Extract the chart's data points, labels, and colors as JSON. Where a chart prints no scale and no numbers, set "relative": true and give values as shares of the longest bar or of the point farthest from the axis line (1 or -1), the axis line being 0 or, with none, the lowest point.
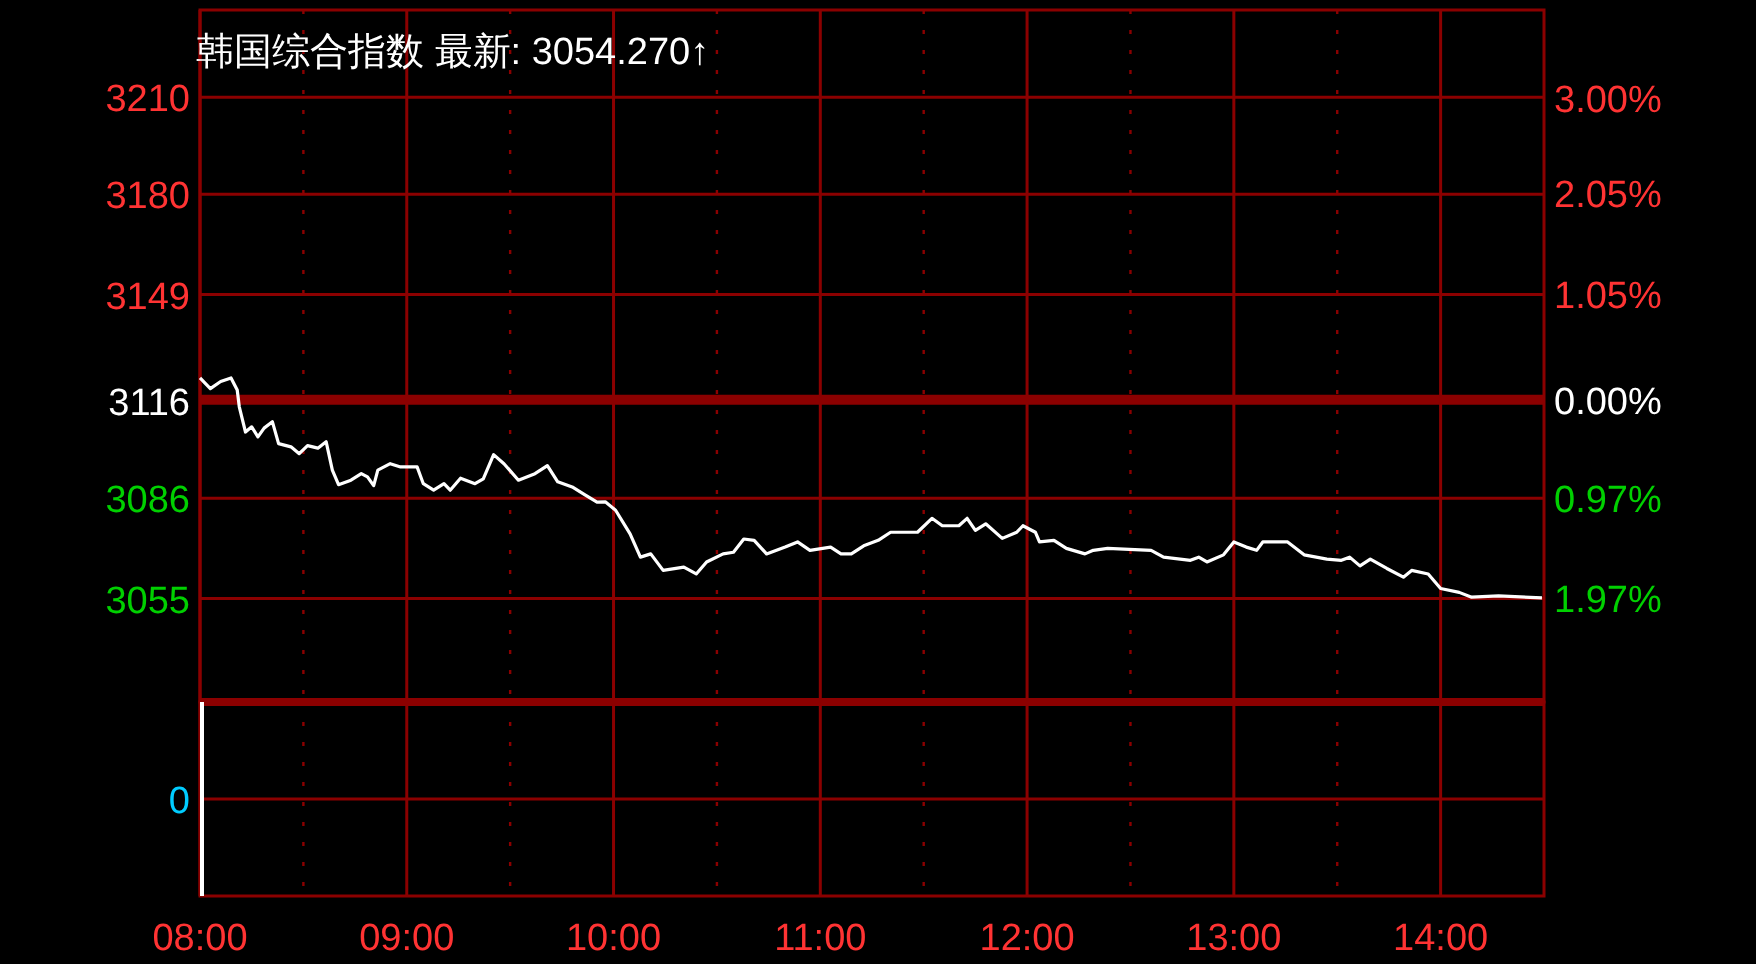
{
  "chart_data": [
    {
      "type": "line",
      "title": "韩国综合指数 最新: 3054.270↑",
      "x": [
        8.0,
        8.05,
        8.1,
        8.15,
        8.18,
        8.19,
        8.22,
        8.25,
        8.28,
        8.31,
        8.35,
        8.38,
        8.44,
        8.48,
        8.52,
        8.57,
        8.61,
        8.64,
        8.67,
        8.73,
        8.78,
        8.81,
        8.84,
        8.86,
        8.92,
        8.97,
        9.05,
        9.08,
        9.13,
        9.18,
        9.21,
        9.26,
        9.33,
        9.37,
        9.42,
        9.47,
        9.54,
        9.62,
        9.68,
        9.73,
        9.8,
        9.86,
        9.92,
        9.96,
        10.01,
        10.08,
        10.13,
        10.18,
        10.24,
        10.34,
        10.4,
        10.45,
        10.53,
        10.58,
        10.63,
        10.68,
        10.74,
        10.83,
        10.89,
        10.95,
        11.05,
        11.1,
        11.15,
        11.21,
        11.28,
        11.34,
        11.47,
        11.54,
        11.59,
        11.67,
        11.71,
        11.75,
        11.8,
        11.88,
        11.95,
        11.98,
        12.04,
        12.06,
        12.13,
        12.19,
        12.28,
        12.32,
        12.39,
        12.6,
        12.66,
        12.79,
        12.83,
        12.87,
        12.95,
        13.0,
        13.06,
        13.11,
        13.14,
        13.26,
        13.34,
        13.45,
        13.52,
        13.56,
        13.61,
        13.66,
        13.74,
        13.82,
        13.86,
        13.94,
        14.0,
        14.09,
        14.15,
        14.28,
        14.49
      ],
      "series": [
        {
          "color": "#ffffff",
          "values": [
            3123.2,
            3119.9,
            3122.1,
            3123.2,
            3119.5,
            3114.3,
            3106.5,
            3108.1,
            3105.0,
            3107.7,
            3109.7,
            3102.9,
            3101.9,
            3099.8,
            3102.3,
            3101.5,
            3103.5,
            3094.7,
            3090.2,
            3091.6,
            3093.6,
            3092.6,
            3089.9,
            3094.7,
            3096.7,
            3095.7,
            3095.7,
            3090.5,
            3088.5,
            3090.5,
            3088.5,
            3092.2,
            3090.5,
            3092.0,
            3099.5,
            3096.7,
            3091.6,
            3093.6,
            3096.1,
            3091.1,
            3089.5,
            3087.1,
            3084.8,
            3084.9,
            3082.3,
            3075.0,
            3067.8,
            3068.8,
            3063.7,
            3064.7,
            3062.6,
            3066.3,
            3068.8,
            3069.3,
            3073.4,
            3073.0,
            3068.8,
            3070.9,
            3072.5,
            3069.9,
            3070.9,
            3068.8,
            3068.8,
            3071.3,
            3073.0,
            3075.5,
            3075.5,
            3079.8,
            3077.5,
            3077.5,
            3079.8,
            3076.1,
            3078.1,
            3073.6,
            3075.5,
            3077.5,
            3075.5,
            3072.5,
            3073.0,
            3070.5,
            3068.8,
            3069.9,
            3070.5,
            3069.9,
            3067.8,
            3066.8,
            3067.8,
            3066.3,
            3068.5,
            3072.5,
            3070.9,
            3069.9,
            3072.5,
            3072.5,
            3068.5,
            3067.2,
            3066.8,
            3067.8,
            3065.1,
            3067.2,
            3064.3,
            3061.6,
            3063.7,
            3062.6,
            3058.1,
            3056.9,
            3055.4,
            3055.8,
            3055.2
          ]
        }
      ],
      "xlim": [
        8,
        14.5
      ],
      "xticks": [
        {
          "value": 8,
          "label": null
        },
        {
          "value": 8.5,
          "label": null
        },
        {
          "value": 9,
          "label": null
        },
        {
          "value": 9.5,
          "label": null
        },
        {
          "value": 10,
          "label": null
        },
        {
          "value": 10.5,
          "label": null
        },
        {
          "value": 11,
          "label": null
        },
        {
          "value": 11.5,
          "label": null
        },
        {
          "value": 12,
          "label": null
        },
        {
          "value": 12.5,
          "label": null
        },
        {
          "value": 13,
          "label": null
        },
        {
          "value": 13.5,
          "label": null
        },
        {
          "value": 14,
          "label": null
        }
      ],
      "ylim": [
        3023,
        3237
      ],
      "yticks": [
        3210,
        3180,
        3149,
        3116,
        3086,
        3055
      ],
      "y2lim": [
        -3.0,
        3.87
      ],
      "y2ticks": [
        {
          "value": 3,
          "label": "3.00%"
        },
        {
          "value": 2.05,
          "label": "2.05%"
        },
        {
          "value": 1.05,
          "label": "1.05%"
        },
        {
          "value": 0,
          "label": "0.00%"
        },
        {
          "value": -0.97,
          "label": "0.97%"
        },
        {
          "value": -1.97,
          "label": "1.97%"
        }
      ],
      "ref_lines": [
        {
          "axis": "y2",
          "value": 0,
          "color": "#8b0000"
        }
      ],
      "tick_labels": "y",
      "grid": true,
      "line_style": "solid",
      "marker": "none"
    },
    {
      "type": "bar",
      "relative": true,
      "x": [
        8
      ],
      "series": [
        {
          "color": "#ffffff",
          "values": [
            1
          ]
        }
      ],
      "xlim": [
        8,
        14.5
      ],
      "xticks": [
        {
          "value": 8,
          "label": "08:00"
        },
        {
          "value": 8.5,
          "label": null
        },
        {
          "value": 9,
          "label": "09:00"
        },
        {
          "value": 9.5,
          "label": null
        },
        {
          "value": 10,
          "label": "10:00"
        },
        {
          "value": 10.5,
          "label": null
        },
        {
          "value": 11,
          "label": "11:00"
        },
        {
          "value": 11.5,
          "label": null
        },
        {
          "value": 12,
          "label": "12:00"
        },
        {
          "value": 12.5,
          "label": null
        },
        {
          "value": 13,
          "label": "13:00"
        },
        {
          "value": 13.5,
          "label": null
        },
        {
          "value": 14,
          "label": "14:00"
        }
      ],
      "annotations": [
        "0"
      ],
      "tick_labels": "x",
      "grid": true
    }
  ]
}
